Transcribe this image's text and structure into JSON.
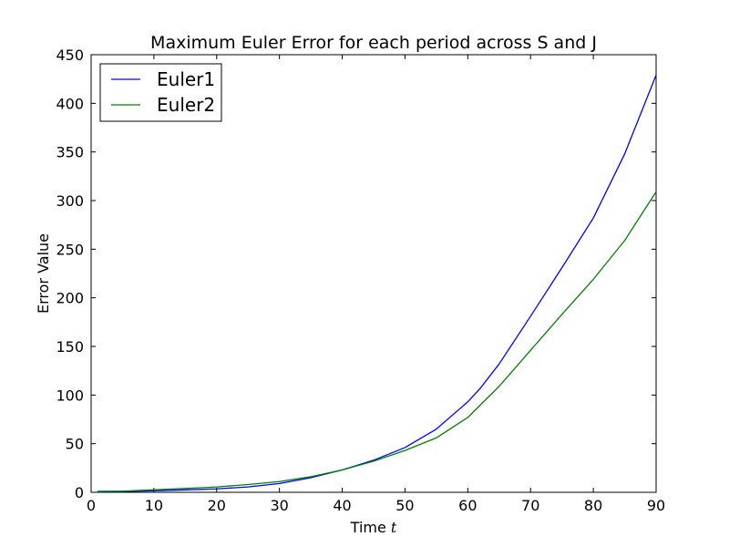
{
  "chart_data": {
    "type": "line",
    "title": "Maximum Euler Error for each period across S and J",
    "xlabel": "Time",
    "xlabel_var": "t",
    "ylabel": "Error Value",
    "xlim": [
      0,
      90
    ],
    "ylim": [
      0,
      450
    ],
    "xticks": [
      0,
      10,
      20,
      30,
      40,
      50,
      60,
      70,
      80,
      90
    ],
    "yticks": [
      0,
      50,
      100,
      150,
      200,
      250,
      300,
      350,
      400,
      450
    ],
    "grid": false,
    "legend_position": "top-left",
    "series": [
      {
        "name": "Euler1",
        "color": "#0000ff",
        "x": [
          1,
          5,
          10,
          15,
          20,
          25,
          30,
          35,
          40,
          45,
          50,
          55,
          60,
          62,
          65,
          70,
          75,
          80,
          85,
          90
        ],
        "y": [
          0.5,
          0.8,
          1.5,
          2.5,
          3.5,
          5.5,
          9,
          15,
          23,
          33,
          46,
          65,
          93,
          107,
          132,
          181,
          231,
          282,
          348,
          429
        ]
      },
      {
        "name": "Euler2",
        "color": "#008000",
        "x": [
          1,
          5,
          10,
          15,
          20,
          25,
          30,
          35,
          40,
          45,
          50,
          55,
          60,
          65,
          70,
          75,
          80,
          85,
          90
        ],
        "y": [
          1,
          1.2,
          2.5,
          4,
          5.5,
          8,
          11,
          16,
          23,
          32,
          43,
          56,
          77,
          109,
          146,
          183,
          219,
          259,
          309
        ]
      }
    ]
  }
}
